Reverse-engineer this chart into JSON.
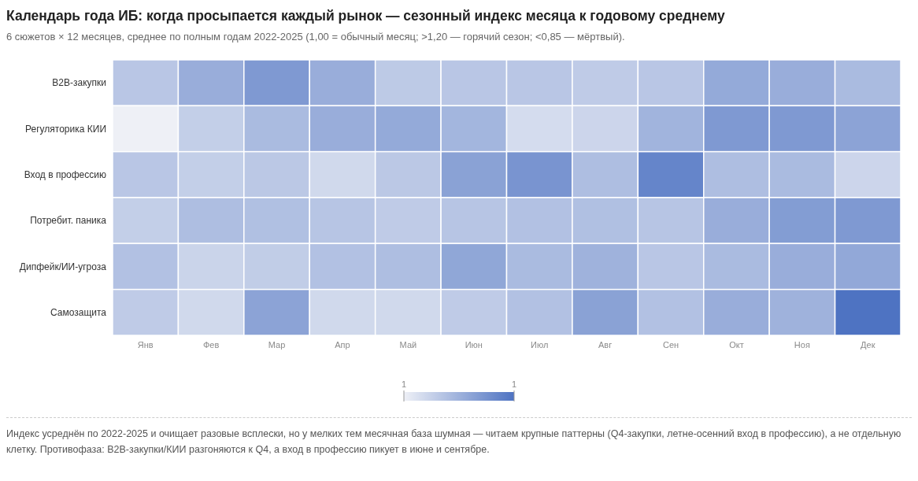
{
  "chart_data": {
    "type": "heatmap",
    "title": "Календарь года ИБ: когда просыпается каждый рынок — сезонный индекс месяца к годовому среднему",
    "subtitle": "6 сюжетов × 12 месяцев, среднее по полным годам 2022-2025 (1,00 = обычный месяц; >1,20 — горячий сезон; <0,85 — мёртвый).",
    "categories": [
      "Янв",
      "Фев",
      "Мар",
      "Апр",
      "Май",
      "Июн",
      "Июл",
      "Авг",
      "Сен",
      "Окт",
      "Ноя",
      "Дек"
    ],
    "y_categories": [
      "B2B-закупки",
      "Регуляторика КИИ",
      "Вход в профессию",
      "Потребит. паника",
      "Дипфейк/ИИ-угроза",
      "Самозащита"
    ],
    "cells": [
      [
        0.95,
        1.1,
        1.22,
        1.1,
        0.93,
        0.95,
        0.95,
        0.92,
        0.95,
        1.12,
        1.1,
        1.02
      ],
      [
        0.7,
        0.9,
        1.02,
        1.1,
        1.12,
        1.05,
        0.82,
        0.86,
        1.06,
        1.22,
        1.22,
        1.16
      ],
      [
        0.95,
        0.9,
        0.94,
        0.84,
        0.94,
        1.17,
        1.25,
        1.0,
        1.34,
        1.0,
        1.02,
        0.86
      ],
      [
        0.9,
        1.0,
        0.99,
        0.96,
        0.92,
        0.96,
        0.98,
        0.99,
        0.96,
        1.1,
        1.2,
        1.22
      ],
      [
        0.98,
        0.87,
        0.91,
        0.98,
        1.0,
        1.14,
        1.02,
        1.07,
        0.95,
        1.02,
        1.1,
        1.13
      ],
      [
        0.92,
        0.84,
        1.16,
        0.84,
        0.84,
        0.92,
        0.98,
        1.17,
        0.98,
        1.1,
        1.07,
        1.45
      ]
    ],
    "clim": [
      0.7,
      1.45
    ],
    "cticks": [
      {
        "value": 0.7,
        "label": "1"
      },
      {
        "value": 1.45,
        "label": "1"
      }
    ],
    "annotations": [
      "Индекс усреднён по 2022-2025 и очищает разовые всплески, но у мелких тем месячная база шумная — читаем крупные паттерны (Q4-закупки, летне-осенний вход в профессию), а не отдельную клетку. Противофаза: B2B-закупки/КИИ разгоняются к Q4, а вход в профессию пикует в июне и сентябре."
    ]
  }
}
